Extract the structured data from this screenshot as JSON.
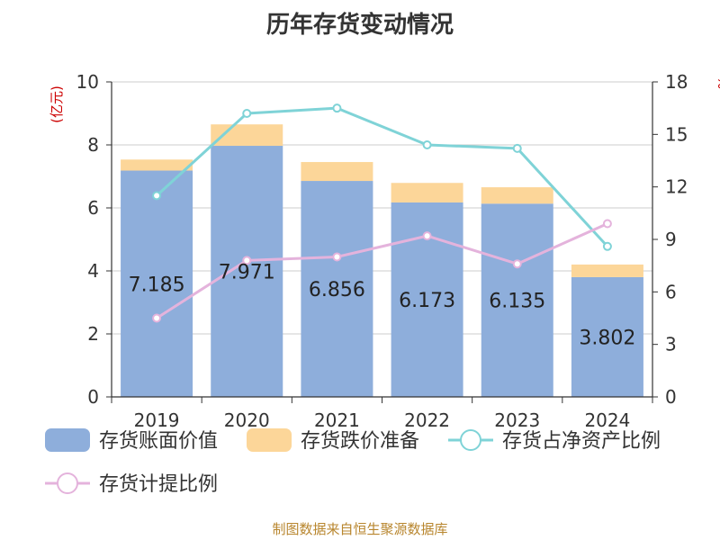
{
  "chart_data": {
    "type": "bar",
    "title": "历年存货变动情况",
    "categories": [
      "2019",
      "2020",
      "2021",
      "2022",
      "2023",
      "2024"
    ],
    "left_axis": {
      "unit": "(亿元)",
      "ylim": [
        0,
        10
      ],
      "ticks": [
        0,
        2,
        4,
        6,
        8,
        10
      ]
    },
    "right_axis": {
      "unit": "%",
      "ylim": [
        0,
        18
      ],
      "ticks": [
        0,
        3,
        6,
        9,
        12,
        15,
        18
      ]
    },
    "series": [
      {
        "name": "存货账面价值",
        "kind": "bar",
        "axis": "left",
        "color": "#8eaedb",
        "values": [
          7.185,
          7.971,
          6.856,
          6.173,
          6.135,
          3.802
        ],
        "labels": [
          "7.185",
          "7.971",
          "6.856",
          "6.173",
          "6.135",
          "3.802"
        ]
      },
      {
        "name": "存货跌价准备",
        "kind": "bar",
        "axis": "left",
        "color": "#fcd699",
        "values": [
          0.35,
          0.68,
          0.6,
          0.62,
          0.52,
          0.4
        ]
      },
      {
        "name": "存货占净资产比例",
        "kind": "line",
        "axis": "right",
        "color": "#7fd3d7",
        "values": [
          11.5,
          16.2,
          16.5,
          14.4,
          14.2,
          8.6
        ]
      },
      {
        "name": "存货计提比例",
        "kind": "line",
        "axis": "right",
        "color": "#e4b3dc",
        "values": [
          4.5,
          7.8,
          8.0,
          9.2,
          7.6,
          9.9
        ]
      }
    ],
    "grid": true,
    "legend_position": "bottom"
  },
  "source": "制图数据来自恒生聚源数据库"
}
